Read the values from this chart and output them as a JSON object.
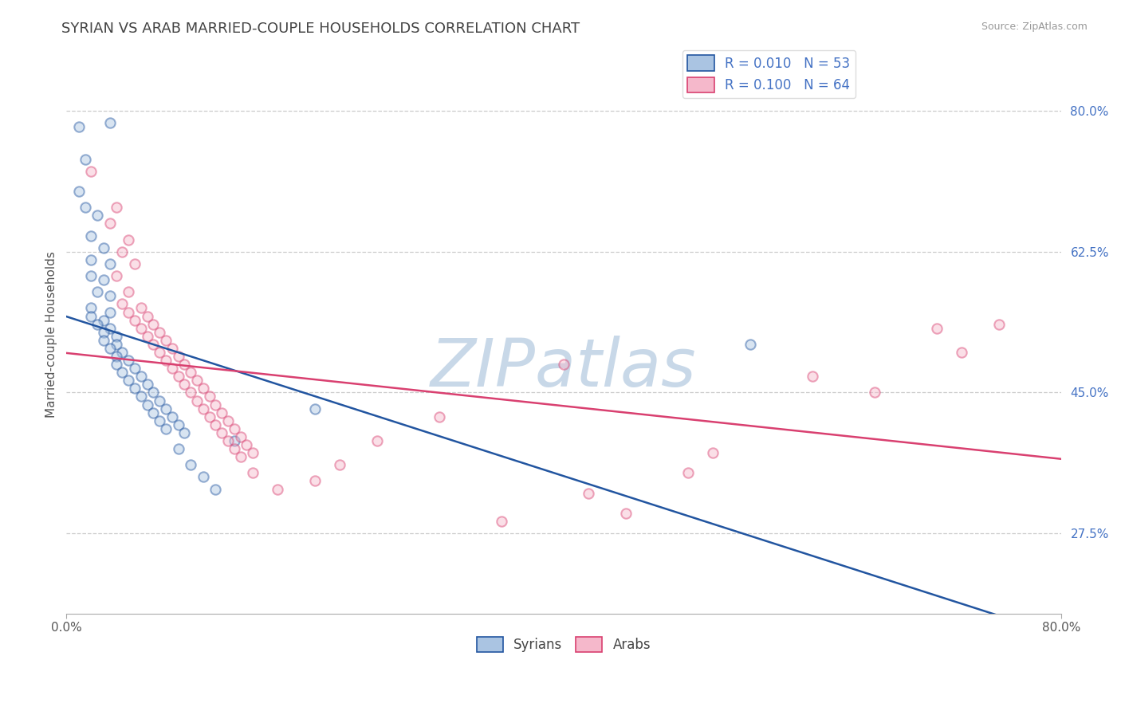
{
  "title": "SYRIAN VS ARAB MARRIED-COUPLE HOUSEHOLDS CORRELATION CHART",
  "source": "Source: ZipAtlas.com",
  "ylabel": "Married-couple Households",
  "xlim": [
    0.0,
    80.0
  ],
  "ylim": [
    17.5,
    87.0
  ],
  "ytick_positions": [
    27.5,
    45.0,
    62.5,
    80.0
  ],
  "ytick_labels": [
    "27.5%",
    "45.0%",
    "62.5%",
    "80.0%"
  ],
  "syrian_R": 0.01,
  "syrian_N": 53,
  "arab_R": 0.1,
  "arab_N": 64,
  "syrian_color": "#aac4e2",
  "arab_color": "#f5b8cb",
  "syrian_line_color": "#2255a0",
  "arab_line_color": "#d94070",
  "background_color": "#ffffff",
  "grid_color": "#cccccc",
  "legend_label_syrian": "Syrians",
  "legend_label_arab": "Arabs",
  "syrian_points": [
    [
      1.0,
      78.0
    ],
    [
      3.5,
      78.5
    ],
    [
      1.5,
      74.0
    ],
    [
      1.0,
      70.0
    ],
    [
      1.5,
      68.0
    ],
    [
      2.5,
      67.0
    ],
    [
      2.0,
      64.5
    ],
    [
      3.0,
      63.0
    ],
    [
      2.0,
      61.5
    ],
    [
      3.5,
      61.0
    ],
    [
      2.0,
      59.5
    ],
    [
      3.0,
      59.0
    ],
    [
      2.5,
      57.5
    ],
    [
      3.5,
      57.0
    ],
    [
      2.0,
      55.5
    ],
    [
      3.5,
      55.0
    ],
    [
      2.0,
      54.5
    ],
    [
      3.0,
      54.0
    ],
    [
      2.5,
      53.5
    ],
    [
      3.5,
      53.0
    ],
    [
      3.0,
      52.5
    ],
    [
      4.0,
      52.0
    ],
    [
      3.0,
      51.5
    ],
    [
      4.0,
      51.0
    ],
    [
      3.5,
      50.5
    ],
    [
      4.5,
      50.0
    ],
    [
      4.0,
      49.5
    ],
    [
      5.0,
      49.0
    ],
    [
      4.0,
      48.5
    ],
    [
      5.5,
      48.0
    ],
    [
      4.5,
      47.5
    ],
    [
      6.0,
      47.0
    ],
    [
      5.0,
      46.5
    ],
    [
      6.5,
      46.0
    ],
    [
      5.5,
      45.5
    ],
    [
      7.0,
      45.0
    ],
    [
      6.0,
      44.5
    ],
    [
      7.5,
      44.0
    ],
    [
      6.5,
      43.5
    ],
    [
      8.0,
      43.0
    ],
    [
      7.0,
      42.5
    ],
    [
      8.5,
      42.0
    ],
    [
      7.5,
      41.5
    ],
    [
      9.0,
      41.0
    ],
    [
      8.0,
      40.5
    ],
    [
      9.5,
      40.0
    ],
    [
      9.0,
      38.0
    ],
    [
      10.0,
      36.0
    ],
    [
      11.0,
      34.5
    ],
    [
      12.0,
      33.0
    ],
    [
      13.5,
      39.0
    ],
    [
      20.0,
      43.0
    ],
    [
      55.0,
      51.0
    ]
  ],
  "arab_points": [
    [
      2.0,
      72.5
    ],
    [
      4.0,
      68.0
    ],
    [
      3.5,
      66.0
    ],
    [
      5.0,
      64.0
    ],
    [
      4.5,
      62.5
    ],
    [
      5.5,
      61.0
    ],
    [
      4.0,
      59.5
    ],
    [
      5.0,
      57.5
    ],
    [
      4.5,
      56.0
    ],
    [
      6.0,
      55.5
    ],
    [
      5.0,
      55.0
    ],
    [
      6.5,
      54.5
    ],
    [
      5.5,
      54.0
    ],
    [
      7.0,
      53.5
    ],
    [
      6.0,
      53.0
    ],
    [
      7.5,
      52.5
    ],
    [
      6.5,
      52.0
    ],
    [
      8.0,
      51.5
    ],
    [
      7.0,
      51.0
    ],
    [
      8.5,
      50.5
    ],
    [
      7.5,
      50.0
    ],
    [
      9.0,
      49.5
    ],
    [
      8.0,
      49.0
    ],
    [
      9.5,
      48.5
    ],
    [
      8.5,
      48.0
    ],
    [
      10.0,
      47.5
    ],
    [
      9.0,
      47.0
    ],
    [
      10.5,
      46.5
    ],
    [
      9.5,
      46.0
    ],
    [
      11.0,
      45.5
    ],
    [
      10.0,
      45.0
    ],
    [
      11.5,
      44.5
    ],
    [
      10.5,
      44.0
    ],
    [
      12.0,
      43.5
    ],
    [
      11.0,
      43.0
    ],
    [
      12.5,
      42.5
    ],
    [
      11.5,
      42.0
    ],
    [
      13.0,
      41.5
    ],
    [
      12.0,
      41.0
    ],
    [
      13.5,
      40.5
    ],
    [
      12.5,
      40.0
    ],
    [
      14.0,
      39.5
    ],
    [
      13.0,
      39.0
    ],
    [
      14.5,
      38.5
    ],
    [
      13.5,
      38.0
    ],
    [
      15.0,
      37.5
    ],
    [
      14.0,
      37.0
    ],
    [
      15.0,
      35.0
    ],
    [
      17.0,
      33.0
    ],
    [
      20.0,
      34.0
    ],
    [
      22.0,
      36.0
    ],
    [
      25.0,
      39.0
    ],
    [
      35.0,
      29.0
    ],
    [
      42.0,
      32.5
    ],
    [
      50.0,
      35.0
    ],
    [
      45.0,
      30.0
    ],
    [
      30.0,
      42.0
    ],
    [
      40.0,
      48.5
    ],
    [
      52.0,
      37.5
    ],
    [
      60.0,
      47.0
    ],
    [
      65.0,
      45.0
    ],
    [
      70.0,
      53.0
    ],
    [
      72.0,
      50.0
    ],
    [
      75.0,
      53.5
    ]
  ],
  "title_fontsize": 13,
  "axis_label_fontsize": 11,
  "tick_fontsize": 11,
  "legend_fontsize": 12,
  "source_fontsize": 9,
  "marker_size": 80,
  "marker_alpha": 0.45,
  "marker_edge_width": 1.5,
  "watermark_text": "ZIPatlas",
  "watermark_color": "#c8d8e8",
  "watermark_fontsize": 60
}
